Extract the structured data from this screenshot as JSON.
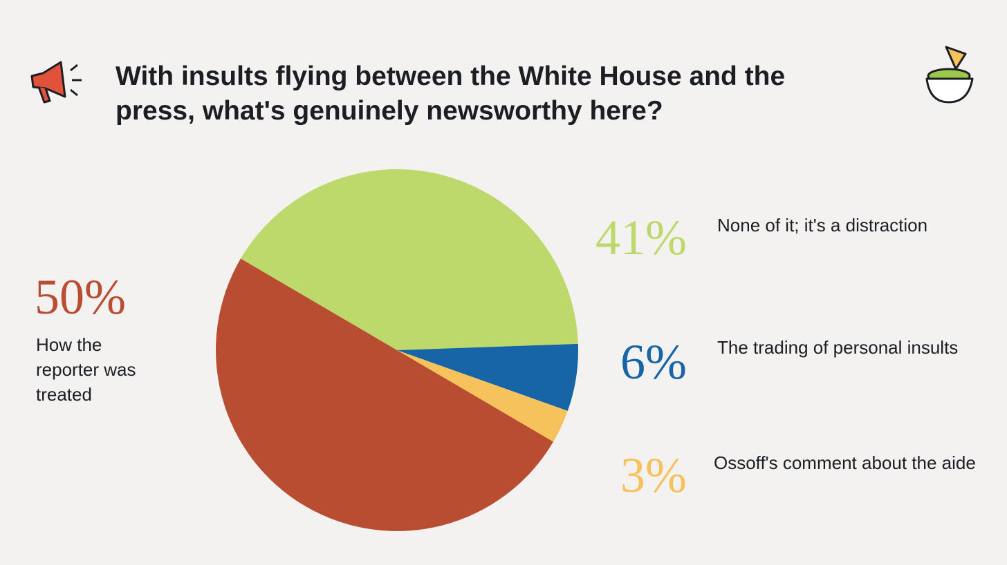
{
  "chart_data": {
    "type": "pie",
    "title": "With insults flying between the White House and the press, what's genuinely newsworthy here?",
    "categories": [
      "None of it; it's a distraction",
      "The trading of personal insults",
      "Ossoff's comment about the aide",
      "How the reporter was treated"
    ],
    "values": [
      41,
      6,
      3,
      50
    ],
    "value_labels": [
      "41%",
      "6%",
      "3%",
      "50%"
    ],
    "colors": [
      "#bdd96c",
      "#1764a6",
      "#f6c25c",
      "#b94d32"
    ]
  }
}
